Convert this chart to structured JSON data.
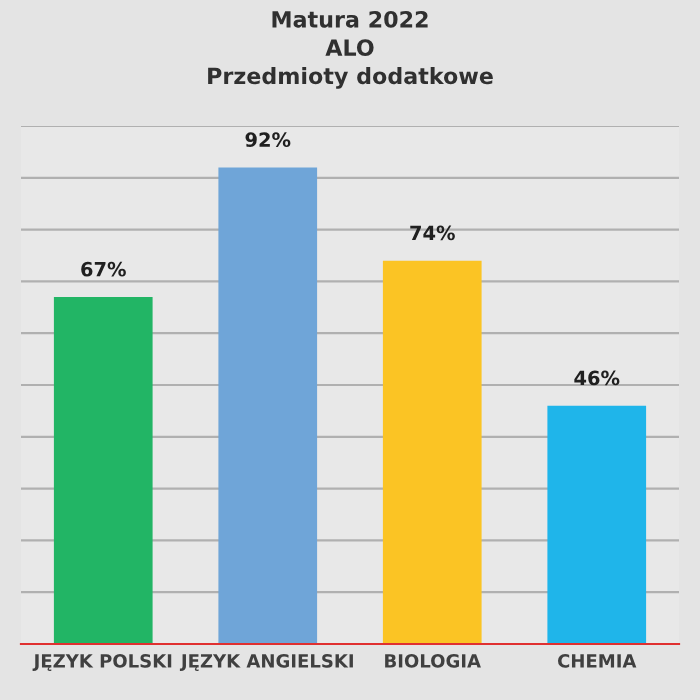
{
  "chart_data": {
    "type": "bar",
    "title": "Matura 2022\nALO\nPrzedmioty dodatkowe",
    "categories": [
      "JĘZYK POLSKI",
      "JĘZYK ANGIELSKI",
      "BIOLOGIA",
      "CHEMIA"
    ],
    "values": [
      67,
      92,
      74,
      46
    ],
    "value_labels": [
      "67%",
      "92%",
      "74%",
      "46%"
    ],
    "colors": [
      "#22b565",
      "#6fa5d8",
      "#fbc424",
      "#1fb5ea"
    ],
    "ylim": [
      0,
      100
    ],
    "yticks": [
      {
        "value": 0,
        "label": null
      },
      {
        "value": 10,
        "label": null
      },
      {
        "value": 20,
        "label": null
      },
      {
        "value": 30,
        "label": null
      },
      {
        "value": 40,
        "label": null
      },
      {
        "value": 50,
        "label": null
      },
      {
        "value": 60,
        "label": null
      },
      {
        "value": 70,
        "label": null
      },
      {
        "value": 80,
        "label": null
      },
      {
        "value": 90,
        "label": null
      },
      {
        "value": 100,
        "label": null
      }
    ],
    "tick_labels": "x",
    "grid": "y",
    "legend": false
  }
}
